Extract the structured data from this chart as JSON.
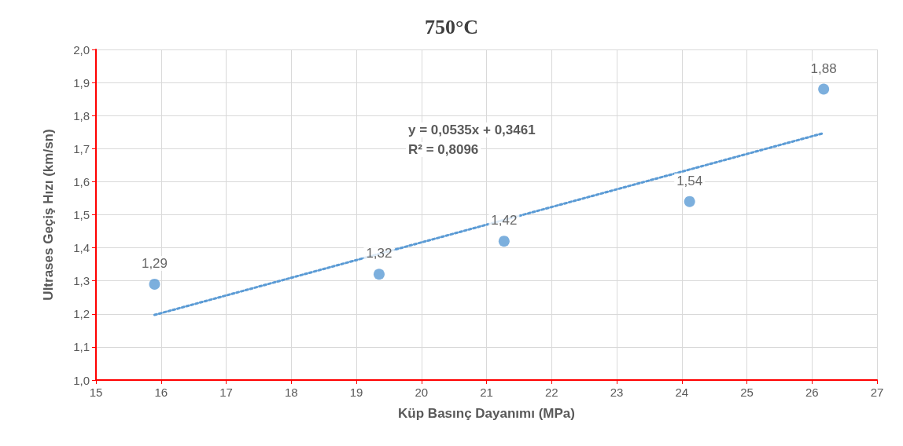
{
  "chart_data": {
    "type": "scatter",
    "title": "750°C",
    "xlabel": "Küp Basınç Dayanımı (MPa)",
    "ylabel": "Ultrases Geçiş Hızı (km/sn)",
    "xlim": [
      15,
      27
    ],
    "xticks": [
      15,
      16,
      17,
      18,
      19,
      20,
      21,
      22,
      23,
      24,
      25,
      26,
      27
    ],
    "ylim": [
      1.0,
      2.0
    ],
    "yticks": [
      {
        "value": 1.0,
        "label": "1,0"
      },
      {
        "value": 1.1,
        "label": "1,1"
      },
      {
        "value": 1.2,
        "label": "1,2"
      },
      {
        "value": 1.3,
        "label": "1,3"
      },
      {
        "value": 1.4,
        "label": "1,4"
      },
      {
        "value": 1.5,
        "label": "1,5"
      },
      {
        "value": 1.6,
        "label": "1,6"
      },
      {
        "value": 1.7,
        "label": "1,7"
      },
      {
        "value": 1.8,
        "label": "1,8"
      },
      {
        "value": 1.9,
        "label": "1,9"
      },
      {
        "value": 2.0,
        "label": "2,0"
      }
    ],
    "grid": true,
    "marker": "circle",
    "series": [
      {
        "color": "#5b9bd5",
        "x": [
          15.9,
          19.35,
          21.27,
          24.12,
          26.18
        ],
        "values": [
          1.29,
          1.32,
          1.42,
          1.54,
          1.88
        ],
        "value_labels": [
          "1,29",
          "1,32",
          "1,42",
          "1,54",
          "1,88"
        ]
      },
      {
        "type": "line",
        "color": "#5b9bd5",
        "line_style": "dotted",
        "marker": "none",
        "x": [
          15.9,
          26.18
        ],
        "values": [
          1.197,
          1.747
        ]
      }
    ],
    "annotations": [
      "y = 0,0535x + 0,3461",
      "R² = 0,8096"
    ]
  }
}
